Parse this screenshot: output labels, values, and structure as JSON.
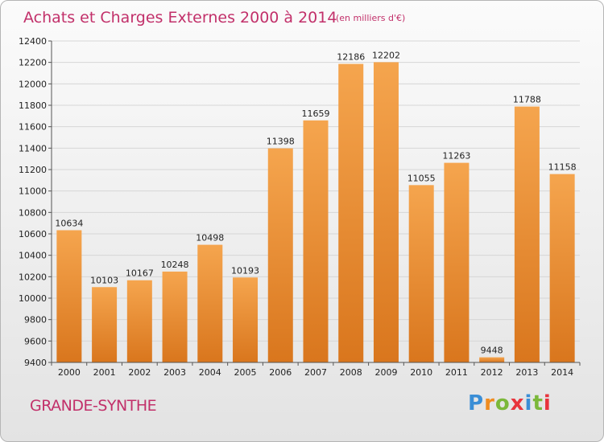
{
  "header": {
    "title": "Achats et Charges Externes 2000 à 2014",
    "subtitle": "(en milliers d'€)"
  },
  "footer": {
    "commune": "GRANDE-SYNTHE",
    "brand_letters": [
      "P",
      "r",
      "o",
      "x",
      "i",
      "t",
      "i"
    ],
    "brand_colors": [
      "#3a8ed6",
      "#f08c1f",
      "#7bb83a",
      "#e8343c",
      "#3a8ed6",
      "#7bb83a",
      "#e8343c"
    ]
  },
  "colors": {
    "bar_top": "#f5a54e",
    "bar_bottom": "#d9761d",
    "title": "#c2306a"
  },
  "chart_data": {
    "type": "bar",
    "categories": [
      "2000",
      "2001",
      "2002",
      "2003",
      "2004",
      "2005",
      "2006",
      "2007",
      "2008",
      "2009",
      "2010",
      "2011",
      "2012",
      "2013",
      "2014"
    ],
    "values": [
      10634,
      10103,
      10167,
      10248,
      10498,
      10193,
      11398,
      11659,
      12186,
      12202,
      11055,
      11263,
      9448,
      11788,
      11158
    ],
    "title": "Achats et Charges Externes 2000 à 2014",
    "ylim": [
      9400,
      12400
    ],
    "ytick_step": 200,
    "grid": true,
    "data_labels": true
  }
}
